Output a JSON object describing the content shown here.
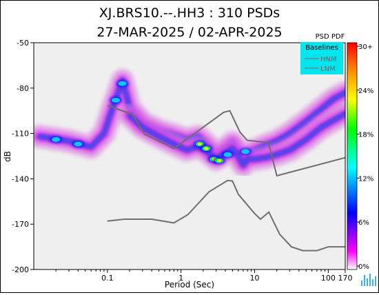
{
  "chart_data": {
    "type": "heatmap",
    "title": "XJ.BRS10.--.HH3 : 310 PSDs",
    "subtitle": "27-MAR-2025 / 02-APR-2025",
    "xlabel": "Period (Sec)",
    "ylabel": "dB",
    "x_scale": "log",
    "xlim": [
      0.01,
      170
    ],
    "ylim": [
      -200,
      -50
    ],
    "x_ticks": [
      {
        "value": 0.1,
        "label": "0.1"
      },
      {
        "value": 1,
        "label": "1"
      },
      {
        "value": 10,
        "label": "10"
      },
      {
        "value": 100,
        "label": "100"
      },
      {
        "value": 170,
        "label": "170"
      }
    ],
    "y_ticks": [
      {
        "value": -50,
        "label": "-50"
      },
      {
        "value": -80,
        "label": "-80"
      },
      {
        "value": -110,
        "label": "-110"
      },
      {
        "value": -140,
        "label": "-140"
      },
      {
        "value": -170,
        "label": "-170"
      },
      {
        "value": -200,
        "label": "-200"
      }
    ],
    "colorbar": {
      "title": "PSD PDF",
      "ticks": [
        "30+",
        "24%",
        "18%",
        "12%",
        "6%",
        "0%"
      ],
      "colors": [
        "#ff0000",
        "#ff8c00",
        "#ffff00",
        "#00ff00",
        "#00ffff",
        "#0000ff",
        "#ff00ff",
        "#ffffff"
      ]
    },
    "legend": {
      "title": "Baselines",
      "items": [
        "HNM",
        "LNM"
      ],
      "placement": "top-right",
      "background": "#00e5ee"
    },
    "series": [
      {
        "name": "HNM",
        "x": [
          0.1,
          0.22,
          0.32,
          0.8,
          3.8,
          4.6,
          6.3,
          7.9,
          15.4,
          20,
          170
        ],
        "y": [
          -91.5,
          -97.4,
          -110.5,
          -120,
          -96,
          -95,
          -109,
          -114.5,
          -116,
          -138,
          -126
        ]
      },
      {
        "name": "LNM",
        "x": [
          0.1,
          0.17,
          0.4,
          0.8,
          1.24,
          2.4,
          4.3,
          5,
          6,
          10,
          12,
          15.6,
          21.9,
          31.6,
          45,
          70,
          101,
          154,
          170
        ],
        "y": [
          -168,
          -166.7,
          -166.7,
          -169.2,
          -163.7,
          -148.6,
          -141.1,
          -141.5,
          -150.2,
          -163,
          -166.7,
          -162,
          -176.7,
          -185,
          -187.5,
          -187.5,
          -185,
          -185,
          -185
        ]
      }
    ],
    "pdf_ridges": [
      {
        "x": [
          0.012,
          0.03,
          0.06,
          0.09,
          0.12,
          0.16,
          0.2,
          0.3,
          0.5,
          0.8,
          1.2,
          1.7,
          2.2,
          3,
          4,
          5,
          6,
          7,
          8,
          10,
          14,
          20,
          30,
          50,
          80,
          120,
          170
        ],
        "y": [
          -112,
          -115,
          -119,
          -110,
          -92,
          -75,
          -93,
          -103,
          -108,
          -111,
          -114,
          -112,
          -117,
          -124,
          -120,
          -116,
          -122,
          -126,
          -123,
          -121,
          -118,
          -115,
          -110,
          -102,
          -94,
          -87,
          -83
        ]
      },
      {
        "x": [
          0.2,
          0.3,
          0.5,
          0.8,
          1.2,
          1.6,
          2,
          2.5,
          3,
          4,
          5,
          6,
          7,
          8,
          10,
          14,
          20,
          30,
          50,
          80,
          120,
          170
        ],
        "y": [
          -98,
          -106,
          -112,
          -117,
          -121,
          -119,
          -120,
          -124,
          -127,
          -123,
          -120,
          -125,
          -131,
          -127,
          -127,
          -126,
          -124,
          -121,
          -114,
          -106,
          -101,
          -97
        ]
      }
    ],
    "hotspots": [
      {
        "x": 1.8,
        "y": -117,
        "level": 0.6
      },
      {
        "x": 2.2,
        "y": -120,
        "level": 0.55
      },
      {
        "x": 2.8,
        "y": -127,
        "level": 0.7
      },
      {
        "x": 3.3,
        "y": -128,
        "level": 0.55
      },
      {
        "x": 0.16,
        "y": -77,
        "level": 0.35
      },
      {
        "x": 0.13,
        "y": -88,
        "level": 0.3
      },
      {
        "x": 0.04,
        "y": -117,
        "level": 0.25
      },
      {
        "x": 0.02,
        "y": -114,
        "level": 0.25
      },
      {
        "x": 4.3,
        "y": -124,
        "level": 0.4
      },
      {
        "x": 7.5,
        "y": -122,
        "level": 0.4
      }
    ],
    "grid": false
  }
}
